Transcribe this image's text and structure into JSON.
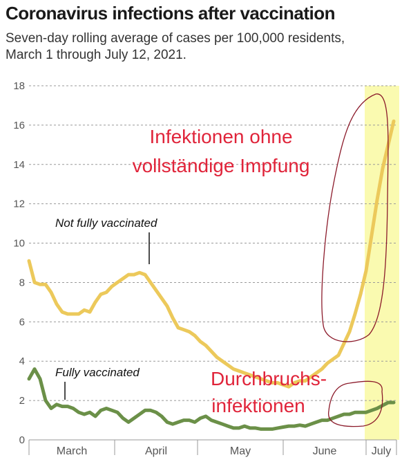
{
  "title": "Coronavirus infections after vaccination",
  "subtitle": "Seven-day rolling average of cases per 100,000 residents, March 1 through July 12, 2021.",
  "annotations": {
    "unvaccinated_line1": "Infektionen ohne",
    "unvaccinated_line2": "vollständige Impfung",
    "breakthrough_line1": "Durchbruchs-",
    "breakthrough_line2": "infektionen"
  },
  "colors": {
    "not_fully_vaccinated": "#ecc95b",
    "fully_vaccinated": "#6b9048",
    "highlight": "#fafab0",
    "annotation_red": "#e0243a",
    "grid": "#999999"
  },
  "chart_data": {
    "type": "line",
    "title": "Coronavirus infections after vaccination",
    "subtitle": "Seven-day rolling average of cases per 100,000 residents, March 1 through July 12, 2021.",
    "xlabel": "",
    "ylabel": "",
    "x_range": [
      "2021-03-01",
      "2021-07-12"
    ],
    "ylim": [
      0,
      18
    ],
    "yticks": [
      0,
      2,
      4,
      6,
      8,
      10,
      12,
      14,
      16,
      18
    ],
    "yticks_labels": [
      "0",
      "2",
      "4",
      "6",
      "8",
      "10",
      "12",
      "14",
      "16",
      "18"
    ],
    "x_tick_labels": [
      "March",
      "April",
      "May",
      "June",
      "July"
    ],
    "grid": "horizontal dashed",
    "highlight_range": [
      "2021-07-01",
      "2021-07-12"
    ],
    "series": [
      {
        "name": "Not fully vaccinated",
        "points": [
          [
            "2021-03-01",
            9.1
          ],
          [
            "2021-03-03",
            8.0
          ],
          [
            "2021-03-05",
            7.9
          ],
          [
            "2021-03-07",
            7.9
          ],
          [
            "2021-03-09",
            7.5
          ],
          [
            "2021-03-11",
            6.9
          ],
          [
            "2021-03-13",
            6.5
          ],
          [
            "2021-03-15",
            6.4
          ],
          [
            "2021-03-17",
            6.4
          ],
          [
            "2021-03-19",
            6.4
          ],
          [
            "2021-03-21",
            6.6
          ],
          [
            "2021-03-23",
            6.5
          ],
          [
            "2021-03-25",
            7.0
          ],
          [
            "2021-03-27",
            7.4
          ],
          [
            "2021-03-29",
            7.5
          ],
          [
            "2021-03-31",
            7.8
          ],
          [
            "2021-04-02",
            8.0
          ],
          [
            "2021-04-04",
            8.2
          ],
          [
            "2021-04-06",
            8.4
          ],
          [
            "2021-04-08",
            8.4
          ],
          [
            "2021-04-10",
            8.5
          ],
          [
            "2021-04-12",
            8.4
          ],
          [
            "2021-04-14",
            8.0
          ],
          [
            "2021-04-16",
            7.6
          ],
          [
            "2021-04-18",
            7.2
          ],
          [
            "2021-04-20",
            6.8
          ],
          [
            "2021-04-22",
            6.2
          ],
          [
            "2021-04-24",
            5.7
          ],
          [
            "2021-04-26",
            5.6
          ],
          [
            "2021-04-28",
            5.5
          ],
          [
            "2021-04-30",
            5.3
          ],
          [
            "2021-05-02",
            5.0
          ],
          [
            "2021-05-04",
            4.8
          ],
          [
            "2021-05-06",
            4.5
          ],
          [
            "2021-05-08",
            4.2
          ],
          [
            "2021-05-10",
            4.0
          ],
          [
            "2021-05-12",
            3.8
          ],
          [
            "2021-05-14",
            3.6
          ],
          [
            "2021-05-16",
            3.5
          ],
          [
            "2021-05-18",
            3.4
          ],
          [
            "2021-05-20",
            3.3
          ],
          [
            "2021-05-22",
            3.2
          ],
          [
            "2021-05-24",
            3.1
          ],
          [
            "2021-05-26",
            3.0
          ],
          [
            "2021-05-28",
            2.9
          ],
          [
            "2021-05-30",
            2.9
          ],
          [
            "2021-06-01",
            2.8
          ],
          [
            "2021-06-03",
            2.7
          ],
          [
            "2021-06-05",
            2.9
          ],
          [
            "2021-06-07",
            3.0
          ],
          [
            "2021-06-09",
            3.0
          ],
          [
            "2021-06-11",
            3.2
          ],
          [
            "2021-06-13",
            3.4
          ],
          [
            "2021-06-15",
            3.6
          ],
          [
            "2021-06-17",
            3.9
          ],
          [
            "2021-06-19",
            4.1
          ],
          [
            "2021-06-21",
            4.3
          ],
          [
            "2021-06-23",
            4.9
          ],
          [
            "2021-06-25",
            5.5
          ],
          [
            "2021-06-27",
            6.4
          ],
          [
            "2021-06-29",
            7.4
          ],
          [
            "2021-07-01",
            8.6
          ],
          [
            "2021-07-03",
            10.4
          ],
          [
            "2021-07-05",
            12.2
          ],
          [
            "2021-07-07",
            13.8
          ],
          [
            "2021-07-09",
            15.0
          ],
          [
            "2021-07-11",
            16.2
          ]
        ]
      },
      {
        "name": "Fully vaccinated",
        "points": [
          [
            "2021-03-01",
            3.1
          ],
          [
            "2021-03-03",
            3.6
          ],
          [
            "2021-03-05",
            3.1
          ],
          [
            "2021-03-07",
            2.0
          ],
          [
            "2021-03-09",
            1.6
          ],
          [
            "2021-03-11",
            1.8
          ],
          [
            "2021-03-13",
            1.7
          ],
          [
            "2021-03-15",
            1.7
          ],
          [
            "2021-03-17",
            1.6
          ],
          [
            "2021-03-19",
            1.4
          ],
          [
            "2021-03-21",
            1.3
          ],
          [
            "2021-03-23",
            1.4
          ],
          [
            "2021-03-25",
            1.2
          ],
          [
            "2021-03-27",
            1.5
          ],
          [
            "2021-03-29",
            1.6
          ],
          [
            "2021-03-31",
            1.5
          ],
          [
            "2021-04-02",
            1.4
          ],
          [
            "2021-04-04",
            1.1
          ],
          [
            "2021-04-06",
            0.9
          ],
          [
            "2021-04-08",
            1.1
          ],
          [
            "2021-04-10",
            1.3
          ],
          [
            "2021-04-12",
            1.5
          ],
          [
            "2021-04-14",
            1.5
          ],
          [
            "2021-04-16",
            1.4
          ],
          [
            "2021-04-18",
            1.2
          ],
          [
            "2021-04-20",
            0.9
          ],
          [
            "2021-04-22",
            0.8
          ],
          [
            "2021-04-24",
            0.9
          ],
          [
            "2021-04-26",
            1.0
          ],
          [
            "2021-04-28",
            1.0
          ],
          [
            "2021-04-30",
            0.9
          ],
          [
            "2021-05-02",
            1.1
          ],
          [
            "2021-05-04",
            1.2
          ],
          [
            "2021-05-06",
            1.0
          ],
          [
            "2021-05-08",
            0.9
          ],
          [
            "2021-05-10",
            0.8
          ],
          [
            "2021-05-12",
            0.7
          ],
          [
            "2021-05-14",
            0.6
          ],
          [
            "2021-05-16",
            0.6
          ],
          [
            "2021-05-18",
            0.7
          ],
          [
            "2021-05-20",
            0.6
          ],
          [
            "2021-05-22",
            0.6
          ],
          [
            "2021-05-24",
            0.55
          ],
          [
            "2021-05-26",
            0.55
          ],
          [
            "2021-05-28",
            0.55
          ],
          [
            "2021-05-30",
            0.6
          ],
          [
            "2021-06-01",
            0.65
          ],
          [
            "2021-06-03",
            0.7
          ],
          [
            "2021-06-05",
            0.7
          ],
          [
            "2021-06-07",
            0.75
          ],
          [
            "2021-06-09",
            0.7
          ],
          [
            "2021-06-11",
            0.8
          ],
          [
            "2021-06-13",
            0.9
          ],
          [
            "2021-06-15",
            1.0
          ],
          [
            "2021-06-17",
            1.0
          ],
          [
            "2021-06-19",
            1.1
          ],
          [
            "2021-06-21",
            1.2
          ],
          [
            "2021-06-23",
            1.3
          ],
          [
            "2021-06-25",
            1.3
          ],
          [
            "2021-06-27",
            1.4
          ],
          [
            "2021-06-29",
            1.4
          ],
          [
            "2021-07-01",
            1.4
          ],
          [
            "2021-07-03",
            1.5
          ],
          [
            "2021-07-05",
            1.6
          ],
          [
            "2021-07-07",
            1.75
          ],
          [
            "2021-07-09",
            1.9
          ],
          [
            "2021-07-11",
            1.9
          ]
        ]
      }
    ]
  }
}
